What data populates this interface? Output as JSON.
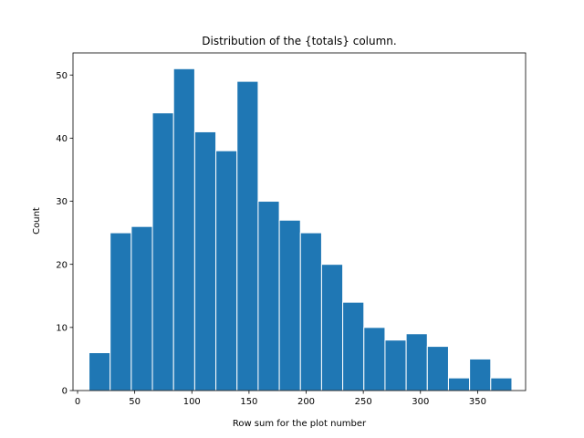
{
  "chart_data": {
    "type": "bar",
    "title": "Distribution of the {totals} column.",
    "xlabel": "Row sum for the plot number",
    "ylabel": "Count",
    "xlim": [
      -4,
      392
    ],
    "ylim": [
      0,
      53.5
    ],
    "xticks": [
      0,
      50,
      100,
      150,
      200,
      250,
      300,
      350
    ],
    "yticks": [
      0,
      10,
      20,
      30,
      40,
      50
    ],
    "grid": false,
    "bar_color": "#1f77b4",
    "edge_color": "#ffffff",
    "bins": [
      {
        "x0": 10,
        "x1": 28.5,
        "count": 6
      },
      {
        "x0": 28.5,
        "x1": 47,
        "count": 25
      },
      {
        "x0": 47,
        "x1": 65.5,
        "count": 26
      },
      {
        "x0": 65.5,
        "x1": 84,
        "count": 44
      },
      {
        "x0": 84,
        "x1": 102.5,
        "count": 51
      },
      {
        "x0": 102.5,
        "x1": 121,
        "count": 41
      },
      {
        "x0": 121,
        "x1": 139.5,
        "count": 38
      },
      {
        "x0": 139.5,
        "x1": 158,
        "count": 49
      },
      {
        "x0": 158,
        "x1": 176.5,
        "count": 30
      },
      {
        "x0": 176.5,
        "x1": 195,
        "count": 27
      },
      {
        "x0": 195,
        "x1": 213.5,
        "count": 25
      },
      {
        "x0": 213.5,
        "x1": 232,
        "count": 20
      },
      {
        "x0": 232,
        "x1": 250.5,
        "count": 14
      },
      {
        "x0": 250.5,
        "x1": 269,
        "count": 10
      },
      {
        "x0": 269,
        "x1": 287.5,
        "count": 8
      },
      {
        "x0": 287.5,
        "x1": 306,
        "count": 9
      },
      {
        "x0": 306,
        "x1": 324.5,
        "count": 7
      },
      {
        "x0": 324.5,
        "x1": 343,
        "count": 2
      },
      {
        "x0": 343,
        "x1": 361.5,
        "count": 5
      },
      {
        "x0": 361.5,
        "x1": 380,
        "count": 2
      }
    ]
  }
}
